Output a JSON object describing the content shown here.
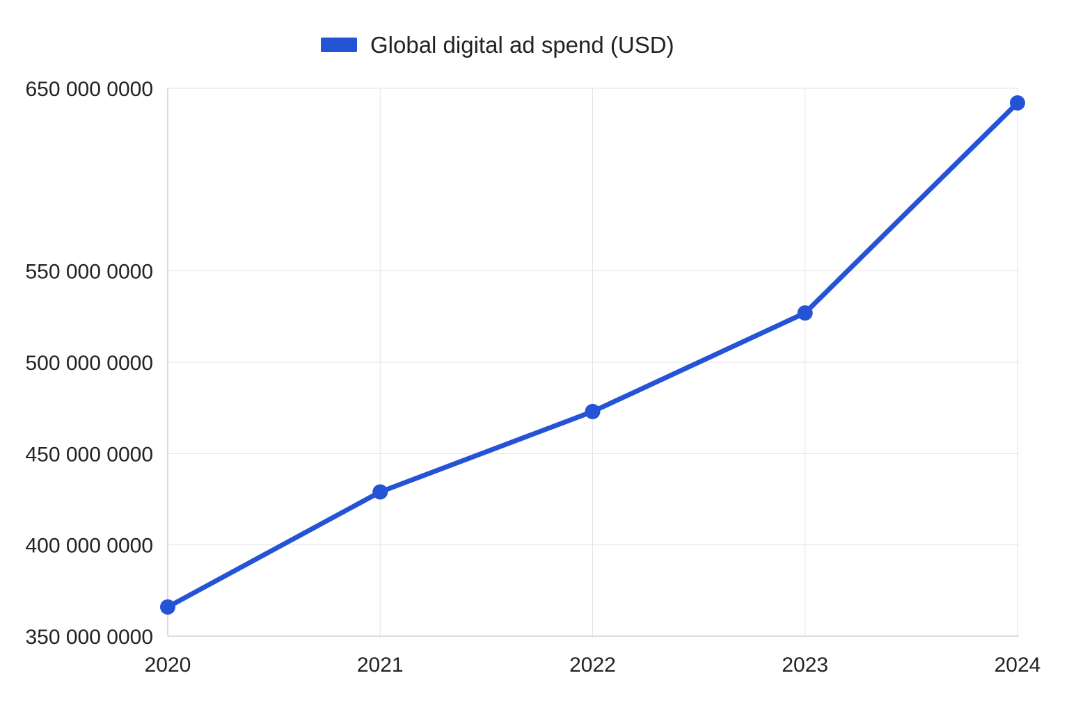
{
  "chart_data": {
    "type": "line",
    "title": "",
    "xlabel": "",
    "ylabel": "",
    "x": [
      "2020",
      "2021",
      "2022",
      "2023",
      "2024"
    ],
    "series": [
      {
        "name": "Global digital ad spend (USD)",
        "color": "#2453d6",
        "values": [
          3660000000,
          4290000000,
          4730000000,
          5270000000,
          6420000000
        ]
      }
    ],
    "ylim": [
      3500000000,
      6500000000
    ],
    "yticks": [
      3500000000,
      4000000000,
      4500000000,
      5000000000,
      5500000000,
      6500000000
    ],
    "ytick_labels": [
      "350 000 0000",
      "400 000 0000",
      "450 000 0000",
      "500 000 0000",
      "550 000 0000",
      "650 000 0000"
    ],
    "grid": true,
    "legend": "top-center"
  }
}
